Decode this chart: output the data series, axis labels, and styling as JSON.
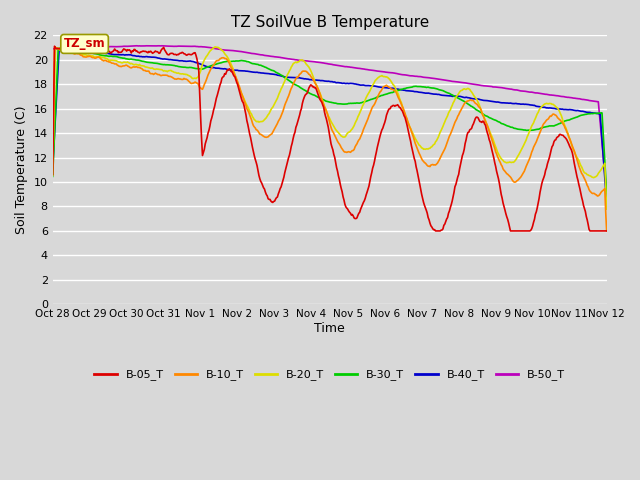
{
  "title": "TZ SoilVue B Temperature",
  "xlabel": "Time",
  "ylabel": "Soil Temperature (C)",
  "ylim": [
    0,
    22
  ],
  "yticks": [
    0,
    2,
    4,
    6,
    8,
    10,
    12,
    14,
    16,
    18,
    20,
    22
  ],
  "annotation_text": "TZ_sm",
  "annotation_color": "#cc0000",
  "annotation_bg": "#ffffcc",
  "annotation_border": "#999900",
  "series": {
    "B-05_T": {
      "color": "#dd0000",
      "label": "B-05_T"
    },
    "B-10_T": {
      "color": "#ff8800",
      "label": "B-10_T"
    },
    "B-20_T": {
      "color": "#dddd00",
      "label": "B-20_T"
    },
    "B-30_T": {
      "color": "#00cc00",
      "label": "B-30_T"
    },
    "B-40_T": {
      "color": "#0000cc",
      "label": "B-40_T"
    },
    "B-50_T": {
      "color": "#bb00bb",
      "label": "B-50_T"
    }
  },
  "x_tick_labels": [
    "Oct 28",
    "Oct 29",
    "Oct 30",
    "Oct 31",
    "Nov 1",
    "Nov 2",
    "Nov 3",
    "Nov 4",
    "Nov 5",
    "Nov 6",
    "Nov 7",
    "Nov 8",
    "Nov 9",
    "Nov 10",
    "Nov 11",
    "Nov 12"
  ],
  "x_tick_positions": [
    0,
    1,
    2,
    3,
    4,
    5,
    6,
    7,
    8,
    9,
    10,
    11,
    12,
    13,
    14,
    15
  ],
  "xlim": [
    0,
    15
  ],
  "bg_color": "#d8d8d8",
  "plot_bg_color": "#d8d8d8",
  "grid_color": "#ffffff",
  "linewidth": 1.2,
  "figsize": [
    6.4,
    4.8
  ],
  "dpi": 100
}
